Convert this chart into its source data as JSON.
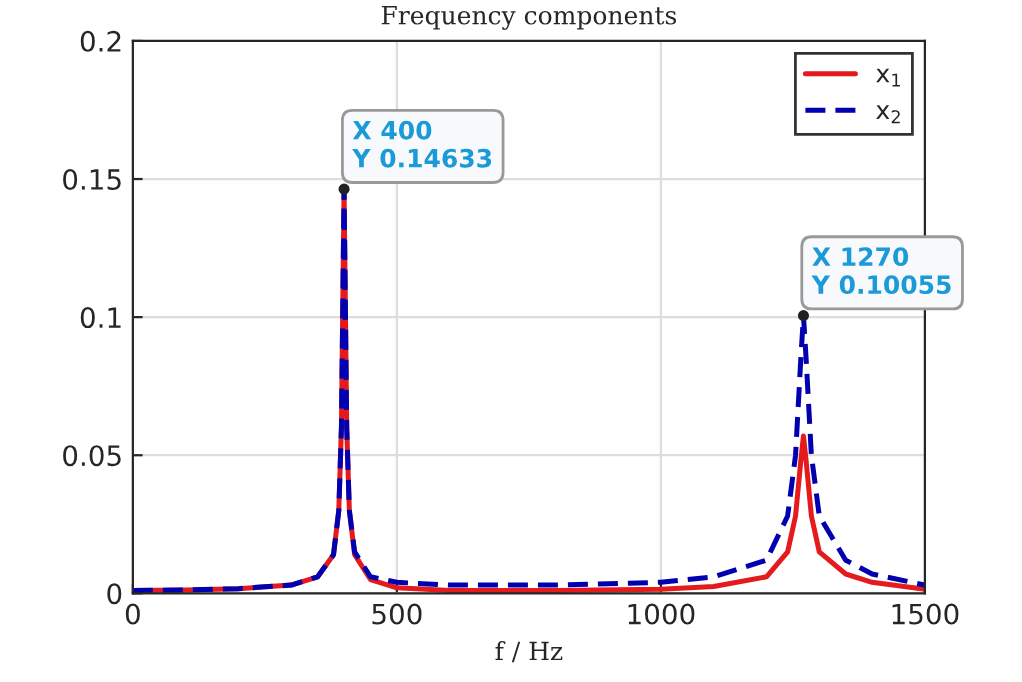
{
  "chart_data": {
    "type": "line",
    "title": "Frequency components",
    "xlabel": "f / Hz",
    "x": [
      0,
      100,
      200,
      300,
      350,
      380,
      390,
      395,
      400,
      405,
      410,
      420,
      450,
      500,
      600,
      800,
      1000,
      1100,
      1200,
      1240,
      1255,
      1265,
      1270,
      1275,
      1285,
      1300,
      1350,
      1400,
      1500
    ],
    "series": [
      {
        "name": "x$_{1}$",
        "color": "#e41a1c",
        "line_style": "solid",
        "values": [
          0.001,
          0.0012,
          0.0017,
          0.003,
          0.006,
          0.014,
          0.03,
          0.06,
          0.146,
          0.06,
          0.03,
          0.014,
          0.005,
          0.002,
          0.001,
          0.001,
          0.0015,
          0.0025,
          0.006,
          0.015,
          0.028,
          0.048,
          0.057,
          0.048,
          0.028,
          0.015,
          0.007,
          0.004,
          0.0015
        ]
      },
      {
        "name": "x$_{2}$",
        "color": "#0000b0",
        "line_style": "dashed",
        "values": [
          0.001,
          0.0012,
          0.0017,
          0.003,
          0.006,
          0.014,
          0.03,
          0.06,
          0.14633,
          0.06,
          0.03,
          0.015,
          0.006,
          0.004,
          0.003,
          0.003,
          0.004,
          0.006,
          0.012,
          0.028,
          0.05,
          0.085,
          0.10055,
          0.085,
          0.05,
          0.028,
          0.012,
          0.007,
          0.003
        ]
      }
    ],
    "xlim": [
      0,
      1500
    ],
    "xticks": [
      0,
      500,
      1000,
      1500
    ],
    "ylim": [
      0,
      0.2
    ],
    "yticks": [
      0,
      0.05,
      0.1,
      0.15,
      0.2
    ],
    "grid": true,
    "legend": "top right",
    "annotations": [
      {
        "text": "X 400\nY 0.14633",
        "x": 400,
        "y": 0.14633
      },
      {
        "text": "X 1270\nY 0.10055",
        "x": 1270,
        "y": 0.10055
      }
    ]
  }
}
